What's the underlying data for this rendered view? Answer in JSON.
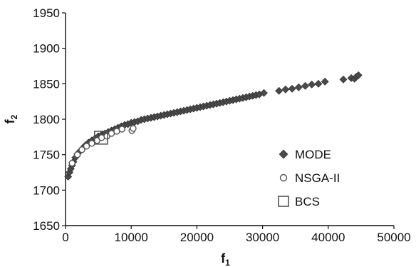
{
  "chart_data": {
    "type": "scatter",
    "title": "",
    "xlabel": "f",
    "xlabel_sub": "1",
    "ylabel": "f",
    "ylabel_sub": "2",
    "xlim": [
      0,
      50000
    ],
    "ylim": [
      1650,
      1950
    ],
    "xticks": [
      "0",
      "10000",
      "20000",
      "30000",
      "40000",
      "50000"
    ],
    "yticks": [
      "1650",
      "1700",
      "1750",
      "1800",
      "1850",
      "1900",
      "1950"
    ],
    "grid": false,
    "legend_position": "right-middle",
    "series": [
      {
        "name": "MODE",
        "marker": "diamond",
        "color": "#4a4a4a",
        "points": [
          [
            400,
            1719
          ],
          [
            600,
            1725
          ],
          [
            800,
            1730
          ],
          [
            1000,
            1735
          ],
          [
            1200,
            1740
          ],
          [
            1500,
            1746
          ],
          [
            1800,
            1751
          ],
          [
            2200,
            1755
          ],
          [
            2600,
            1759
          ],
          [
            3000,
            1763
          ],
          [
            3500,
            1767
          ],
          [
            4000,
            1770
          ],
          [
            4500,
            1773
          ],
          [
            5000,
            1776
          ],
          [
            5500,
            1778
          ],
          [
            6000,
            1780
          ],
          [
            6500,
            1782
          ],
          [
            7000,
            1784
          ],
          [
            7500,
            1786
          ],
          [
            8000,
            1788
          ],
          [
            8500,
            1790
          ],
          [
            9000,
            1792
          ],
          [
            9500,
            1793
          ],
          [
            10000,
            1795
          ],
          [
            10500,
            1796
          ],
          [
            11000,
            1797
          ],
          [
            11500,
            1799
          ],
          [
            12000,
            1800
          ],
          [
            12500,
            1801
          ],
          [
            13000,
            1802
          ],
          [
            13500,
            1803
          ],
          [
            14000,
            1804
          ],
          [
            14500,
            1805
          ],
          [
            15000,
            1806
          ],
          [
            15500,
            1807
          ],
          [
            16000,
            1808
          ],
          [
            16500,
            1809
          ],
          [
            17000,
            1810
          ],
          [
            17500,
            1811
          ],
          [
            18000,
            1812
          ],
          [
            18500,
            1813
          ],
          [
            19000,
            1814
          ],
          [
            19500,
            1815
          ],
          [
            20000,
            1816
          ],
          [
            20500,
            1817
          ],
          [
            21000,
            1818
          ],
          [
            21500,
            1819
          ],
          [
            22000,
            1820
          ],
          [
            22500,
            1821
          ],
          [
            23000,
            1822
          ],
          [
            23500,
            1823
          ],
          [
            24000,
            1824
          ],
          [
            24500,
            1825
          ],
          [
            25000,
            1826
          ],
          [
            25500,
            1827
          ],
          [
            26000,
            1828
          ],
          [
            26500,
            1829
          ],
          [
            27000,
            1830
          ],
          [
            27500,
            1831
          ],
          [
            28000,
            1832
          ],
          [
            28500,
            1833
          ],
          [
            29000,
            1834
          ],
          [
            29500,
            1835
          ],
          [
            30200,
            1837
          ],
          [
            32500,
            1840
          ],
          [
            33500,
            1842
          ],
          [
            34500,
            1843
          ],
          [
            35500,
            1845
          ],
          [
            36500,
            1847
          ],
          [
            37500,
            1849
          ],
          [
            38500,
            1850
          ],
          [
            39500,
            1853
          ],
          [
            42300,
            1856
          ],
          [
            43500,
            1858
          ],
          [
            44000,
            1857
          ],
          [
            44300,
            1860
          ],
          [
            44600,
            1862
          ]
        ]
      },
      {
        "name": "NSGA-II",
        "marker": "circle",
        "color": "#555555",
        "points": [
          [
            1000,
            1738
          ],
          [
            1800,
            1750
          ],
          [
            2500,
            1757
          ],
          [
            3200,
            1762
          ],
          [
            4000,
            1766
          ],
          [
            4800,
            1770
          ],
          [
            5500,
            1774
          ],
          [
            6300,
            1776
          ],
          [
            7000,
            1780
          ],
          [
            7800,
            1783
          ],
          [
            8600,
            1786
          ],
          [
            10100,
            1784
          ],
          [
            10300,
            1787
          ]
        ]
      },
      {
        "name": "BCS",
        "marker": "square",
        "color": "#555555",
        "points": [
          [
            5400,
            1774
          ]
        ]
      }
    ]
  }
}
